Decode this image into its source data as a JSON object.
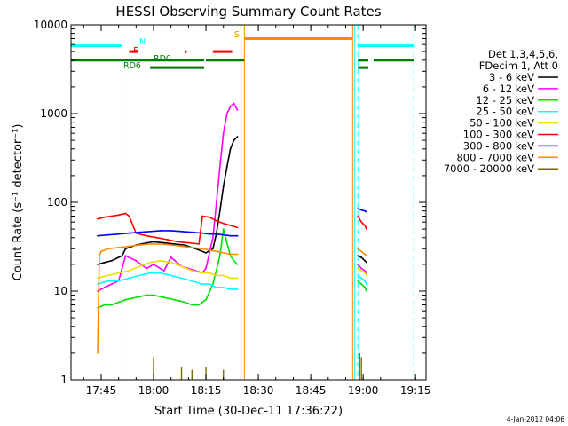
{
  "chart_data": {
    "type": "line",
    "title": "HESSI Observing Summary Count Rates",
    "xlabel": "Start Time (30-Dec-11 17:36:22)",
    "ylabel": "Count Rate (s⁻¹ detector⁻¹)",
    "yscale": "log",
    "xlim": [
      "17:36:22",
      "19:18:00"
    ],
    "ylim": [
      1,
      10000
    ],
    "x_ticks": [
      "17:45",
      "18:00",
      "18:15",
      "18:30",
      "18:45",
      "19:00",
      "19:15"
    ],
    "y_ticks": [
      "1",
      "10",
      "100",
      "1000",
      "10000"
    ],
    "legend": {
      "placement": "right",
      "header": [
        "Det 1,3,4,5,6,",
        "FDecim 1, Att 0"
      ],
      "entries": [
        {
          "label": "3 - 6 keV",
          "color": "#000000"
        },
        {
          "label": "6 - 12 keV",
          "color": "#ff00ff"
        },
        {
          "label": "12 - 25 keV",
          "color": "#00e000"
        },
        {
          "label": "25 - 50 keV",
          "color": "#00ffff"
        },
        {
          "label": "50 - 100 keV",
          "color": "#e8e000"
        },
        {
          "label": "100 - 300 keV",
          "color": "#ff0000"
        },
        {
          "label": "300 - 800 keV",
          "color": "#0000ff"
        },
        {
          "label": "800 - 7000 keV",
          "color": "#ff8c00"
        },
        {
          "label": "7000 - 20000 keV",
          "color": "#7a6a00"
        }
      ]
    },
    "flag_labels": {
      "night": "N",
      "flare": "F",
      "saa": "S",
      "rd0": "RD0",
      "rd6": "RD6"
    },
    "flag_bars": [
      {
        "name": "night",
        "label": "N",
        "color": "#00ffff",
        "y": 5800,
        "segments": [
          [
            "17:36:22",
            "17:51:00"
          ],
          [
            "18:58:30",
            "19:14:30"
          ]
        ]
      },
      {
        "name": "flare",
        "label": "F",
        "color": "#ff0000",
        "y": 5000,
        "segments": [
          [
            "17:53:00",
            "17:55:30"
          ],
          [
            "18:09:00",
            "18:09:30"
          ],
          [
            "18:17:00",
            "18:22:30"
          ]
        ]
      },
      {
        "name": "saa",
        "label": "S",
        "color": "#ff8c00",
        "y": 7000,
        "segments": [
          [
            "18:26:00",
            "18:57:00"
          ]
        ]
      },
      {
        "name": "rd0",
        "label": "RD0",
        "color": "#007a00",
        "y": 4000,
        "segments": [
          [
            "17:36:22",
            "18:14:30"
          ],
          [
            "18:15:00",
            "18:26:00"
          ],
          [
            "18:58:30",
            "19:01:30"
          ],
          [
            "19:03:00",
            "19:14:30"
          ]
        ]
      },
      {
        "name": "rd6",
        "label": "RD6",
        "color": "#007a00",
        "y": 3300,
        "segments": [
          [
            "17:59:00",
            "18:14:30"
          ],
          [
            "18:58:30",
            "19:01:30"
          ]
        ]
      }
    ],
    "vlines": [
      {
        "t": "17:36:22",
        "color": "#00ffff",
        "style": "solid"
      },
      {
        "t": "17:51:00",
        "color": "#00ffff",
        "style": "dashed"
      },
      {
        "t": "18:26:00",
        "color": "#ff8c00",
        "style": "solid"
      },
      {
        "t": "18:57:00",
        "color": "#ff8c00",
        "style": "solid"
      },
      {
        "t": "18:58:30",
        "color": "#00ffff",
        "style": "dashed"
      },
      {
        "t": "18:57:30",
        "color": "#00ffff",
        "style": "solid"
      },
      {
        "t": "19:14:30",
        "color": "#00ffff",
        "style": "dashed"
      }
    ],
    "series": [
      {
        "name": "3 - 6 keV",
        "color": "#000000",
        "segments": [
          {
            "t": [
              "17:44:00",
              "17:46:00",
              "17:48:00",
              "17:50:00",
              "17:51:00",
              "17:52:00",
              "17:55:00",
              "17:58:00",
              "18:00:00",
              "18:03:00",
              "18:06:00",
              "18:09:00",
              "18:11:00",
              "18:13:00",
              "18:15:00",
              "18:17:00",
              "18:18:00",
              "18:19:00",
              "18:20:00",
              "18:21:00",
              "18:22:00",
              "18:23:00",
              "18:24:00"
            ],
            "v": [
              20,
              21,
              22,
              24,
              25,
              30,
              33,
              35,
              36,
              35,
              34,
              33,
              31,
              29,
              27,
              30,
              45,
              80,
              150,
              250,
              400,
              500,
              550
            ]
          },
          {
            "t": [
              "18:58:30",
              "18:59:30",
              "19:00:30",
              "19:01:00"
            ],
            "v": [
              25,
              24,
              22,
              21
            ]
          }
        ]
      },
      {
        "name": "6 - 12 keV",
        "color": "#ff00ff",
        "segments": [
          {
            "t": [
              "17:44:00",
              "17:46:00",
              "17:48:00",
              "17:50:00",
              "17:52:00",
              "17:55:00",
              "17:58:00",
              "18:00:00",
              "18:03:00",
              "18:05:00",
              "18:08:00",
              "18:10:00",
              "18:12:00",
              "18:14:00",
              "18:15:00",
              "18:17:00",
              "18:18:00",
              "18:19:00",
              "18:20:00",
              "18:21:00",
              "18:22:00",
              "18:23:00",
              "18:24:00"
            ],
            "v": [
              10,
              11,
              12,
              13,
              25,
              22,
              18,
              20,
              17,
              24,
              19,
              18,
              17,
              16,
              18,
              40,
              100,
              250,
              600,
              1000,
              1200,
              1300,
              1100
            ]
          },
          {
            "t": [
              "18:58:30",
              "18:59:30",
              "19:00:30",
              "19:01:00"
            ],
            "v": [
              20,
              18,
              17,
              16
            ]
          }
        ]
      },
      {
        "name": "12 - 25 keV",
        "color": "#00e000",
        "segments": [
          {
            "t": [
              "17:44:00",
              "17:46:00",
              "17:48:00",
              "17:50:00",
              "17:52:00",
              "17:55:00",
              "17:58:00",
              "18:00:00",
              "18:03:00",
              "18:06:00",
              "18:09:00",
              "18:11:00",
              "18:13:00",
              "18:15:00",
              "18:17:00",
              "18:19:00",
              "18:20:00",
              "18:21:00",
              "18:22:00",
              "18:23:00",
              "18:24:00"
            ],
            "v": [
              6.5,
              7,
              7,
              7.5,
              8,
              8.5,
              9,
              9,
              8.5,
              8,
              7.5,
              7,
              7,
              8,
              12,
              25,
              50,
              35,
              25,
              22,
              20
            ]
          },
          {
            "t": [
              "18:58:30",
              "18:59:30",
              "19:00:30",
              "19:01:00"
            ],
            "v": [
              13,
              12,
              11,
              10
            ]
          }
        ]
      },
      {
        "name": "25 - 50 keV",
        "color": "#00ffff",
        "segments": [
          {
            "t": [
              "17:44:00",
              "17:47:00",
              "17:50:00",
              "17:53:00",
              "17:56:00",
              "17:59:00",
              "18:02:00",
              "18:05:00",
              "18:08:00",
              "18:11:00",
              "18:14:00",
              "18:16:00",
              "18:18:00",
              "18:20:00",
              "18:22:00",
              "18:24:00"
            ],
            "v": [
              12,
              13,
              13,
              14,
              15,
              16,
              16,
              15,
              14,
              13,
              12,
              12,
              11,
              11,
              10.5,
              10.5
            ]
          },
          {
            "t": [
              "18:58:30",
              "18:59:30",
              "19:00:30",
              "19:01:00"
            ],
            "v": [
              15,
              14,
              13,
              12
            ]
          }
        ]
      },
      {
        "name": "50 - 100 keV",
        "color": "#e8e000",
        "segments": [
          {
            "t": [
              "17:44:00",
              "17:47:00",
              "17:50:00",
              "17:53:00",
              "17:56:00",
              "17:59:00",
              "18:02:00",
              "18:05:00",
              "18:08:00",
              "18:11:00",
              "18:14:00",
              "18:16:00",
              "18:18:00",
              "18:20:00",
              "18:22:00",
              "18:24:00"
            ],
            "v": [
              14,
              15,
              16,
              17,
              19,
              21,
              22,
              21,
              19,
              17,
              16,
              16,
              15,
              15,
              14,
              14
            ]
          },
          {
            "t": [
              "18:58:30",
              "18:59:30",
              "19:00:30",
              "19:01:00"
            ],
            "v": [
              18,
              17,
              16,
              15
            ]
          }
        ]
      },
      {
        "name": "100 - 300 keV",
        "color": "#ff0000",
        "segments": [
          {
            "t": [
              "17:44:00",
              "17:46:00",
              "17:48:00",
              "17:50:00",
              "17:52:00",
              "17:53:00",
              "17:55:00",
              "17:58:00",
              "18:01:00",
              "18:04:00",
              "18:07:00",
              "18:10:00",
              "18:13:00",
              "18:14:00",
              "18:16:00",
              "18:18:00",
              "18:20:00",
              "18:22:00",
              "18:24:00"
            ],
            "v": [
              65,
              68,
              70,
              72,
              75,
              70,
              45,
              42,
              40,
              38,
              36,
              35,
              34,
              70,
              68,
              62,
              58,
              55,
              52
            ]
          },
          {
            "t": [
              "18:58:30",
              "18:59:30",
              "19:00:30",
              "19:01:00"
            ],
            "v": [
              70,
              60,
              55,
              50
            ]
          }
        ]
      },
      {
        "name": "300 - 800 keV",
        "color": "#0000ff",
        "segments": [
          {
            "t": [
              "17:44:00",
              "17:47:00",
              "17:50:00",
              "17:53:00",
              "17:56:00",
              "17:59:00",
              "18:02:00",
              "18:05:00",
              "18:08:00",
              "18:11:00",
              "18:14:00",
              "18:16:00",
              "18:18:00",
              "18:20:00",
              "18:22:00",
              "18:24:00"
            ],
            "v": [
              42,
              43,
              44,
              45,
              46,
              47,
              48,
              48,
              47,
              46,
              45,
              44,
              44,
              43,
              42,
              42
            ]
          },
          {
            "t": [
              "18:58:30",
              "18:59:30",
              "19:00:30",
              "19:01:00"
            ],
            "v": [
              85,
              82,
              80,
              78
            ]
          }
        ]
      },
      {
        "name": "800 - 7000 keV",
        "color": "#ff8c00",
        "segments": [
          {
            "t": [
              "17:44:00",
              "17:44:30",
              "17:45:00",
              "17:47:00",
              "17:50:00",
              "17:53:00",
              "17:56:00",
              "17:59:00",
              "18:02:00",
              "18:05:00",
              "18:08:00",
              "18:11:00",
              "18:14:00",
              "18:16:00",
              "18:18:00",
              "18:20:00",
              "18:22:00",
              "18:24:00"
            ],
            "v": [
              2,
              25,
              28,
              30,
              31,
              32,
              33,
              34,
              34,
              33,
              32,
              31,
              30,
              29,
              28,
              27,
              26,
              26
            ]
          },
          {
            "t": [
              "18:58:30",
              "18:59:30",
              "19:00:30",
              "19:01:00"
            ],
            "v": [
              30,
              28,
              26,
              25
            ]
          }
        ]
      },
      {
        "name": "7000 - 20000 keV",
        "color": "#7a6a00",
        "spikes": [
          {
            "t": "18:00:00",
            "v": 1.8
          },
          {
            "t": "18:08:00",
            "v": 1.4
          },
          {
            "t": "18:11:00",
            "v": 1.3
          },
          {
            "t": "18:15:00",
            "v": 1.4
          },
          {
            "t": "18:20:00",
            "v": 1.3
          },
          {
            "t": "18:59:00",
            "v": 2.0
          },
          {
            "t": "18:59:30",
            "v": 1.8
          }
        ]
      }
    ]
  },
  "footer": {
    "date_stamp": "4-Jan-2012 04:06"
  }
}
